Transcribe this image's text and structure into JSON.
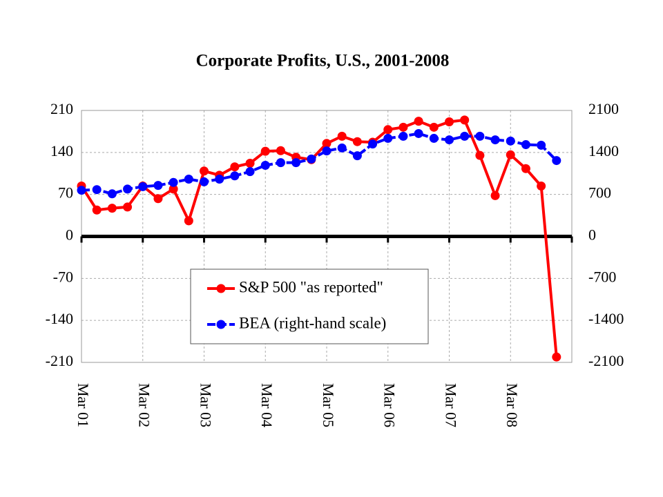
{
  "chart_data": {
    "type": "line",
    "title": "Corporate Profits, U.S., 2001-2008",
    "categories": [
      "Mar 01",
      null,
      null,
      null,
      "Mar 02",
      null,
      null,
      null,
      "Mar 03",
      null,
      null,
      null,
      "Mar 04",
      null,
      null,
      null,
      "Mar 05",
      null,
      null,
      null,
      "Mar 06",
      null,
      null,
      null,
      "Mar 07",
      null,
      null,
      null,
      "Mar 08",
      null,
      null,
      null
    ],
    "series": [
      {
        "name": "S&P 500 \"as reported\"",
        "color": "#ff0000",
        "values": [
          84,
          44,
          47,
          49,
          84,
          63,
          79,
          26,
          109,
          102,
          116,
          122,
          142,
          143,
          132,
          128,
          155,
          167,
          158,
          157,
          178,
          182,
          192,
          182,
          191,
          194,
          135,
          68,
          136,
          113,
          84,
          -201
        ]
      },
      {
        "name": "BEA (right-hand scale)",
        "color": "#0000ff",
        "axis": "y2",
        "values": [
          770,
          780,
          710,
          790,
          830,
          850,
          900,
          955,
          910,
          955,
          1010,
          1080,
          1185,
          1230,
          1230,
          1290,
          1425,
          1475,
          1345,
          1540,
          1635,
          1670,
          1715,
          1635,
          1610,
          1670,
          1670,
          1610,
          1590,
          1530,
          1520,
          1265
        ]
      }
    ],
    "ylim": [
      -210,
      210
    ],
    "yticks": [
      210,
      140,
      70,
      0,
      -70,
      -140,
      -210
    ],
    "y2lim": [
      -2100,
      2100
    ],
    "y2ticks": [
      2100,
      1400,
      700,
      0,
      -700,
      -1400,
      -2100
    ],
    "grid": true
  }
}
